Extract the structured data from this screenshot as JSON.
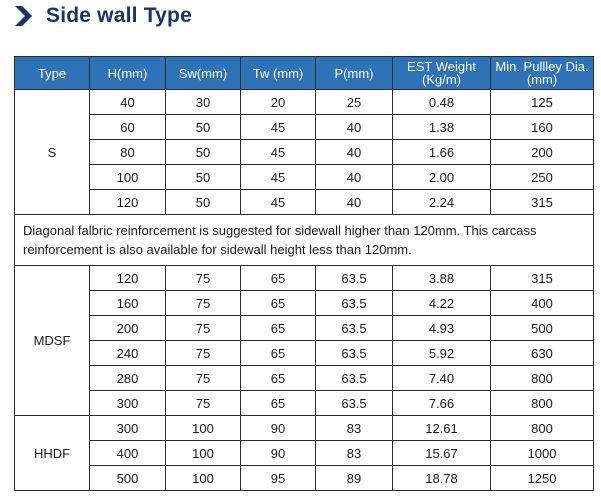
{
  "title": "Side wall Type",
  "title_icon": "chevron-right-icon",
  "accent_color": "#2e73b8",
  "title_color": "#12356e",
  "columns": [
    "Type",
    "H(mm)",
    "Sw(mm)",
    "Tw (mm)",
    "P(mm)",
    "EST Weight (Kg/m)",
    "Min. Pullley Dia. (mm)"
  ],
  "groups": [
    {
      "type": "S",
      "rows": [
        [
          "40",
          "30",
          "20",
          "25",
          "0.48",
          "125"
        ],
        [
          "60",
          "50",
          "45",
          "40",
          "1.38",
          "160"
        ],
        [
          "80",
          "50",
          "45",
          "40",
          "1.66",
          "200"
        ],
        [
          "100",
          "50",
          "45",
          "40",
          "2.00",
          "250"
        ],
        [
          "120",
          "50",
          "45",
          "40",
          "2.24",
          "315"
        ]
      ]
    },
    {
      "type": "MDSF",
      "rows": [
        [
          "120",
          "75",
          "65",
          "63.5",
          "3.88",
          "315"
        ],
        [
          "160",
          "75",
          "65",
          "63.5",
          "4.22",
          "400"
        ],
        [
          "200",
          "75",
          "65",
          "63.5",
          "4.93",
          "500"
        ],
        [
          "240",
          "75",
          "65",
          "63.5",
          "5.92",
          "630"
        ],
        [
          "280",
          "75",
          "65",
          "63.5",
          "7.40",
          "800"
        ],
        [
          "300",
          "75",
          "65",
          "63.5",
          "7.66",
          "800"
        ]
      ]
    },
    {
      "type": "HHDF",
      "rows": [
        [
          "300",
          "100",
          "90",
          "83",
          "12.61",
          "800"
        ],
        [
          "400",
          "100",
          "90",
          "83",
          "15.67",
          "1000"
        ],
        [
          "500",
          "100",
          "95",
          "89",
          "18.78",
          "1250"
        ]
      ]
    }
  ],
  "note": "Diagonal falbric reinforcement is suggested for sidewall higher than 120mm. This carcass reinforcement is also available for sidewall height less than 120mm."
}
